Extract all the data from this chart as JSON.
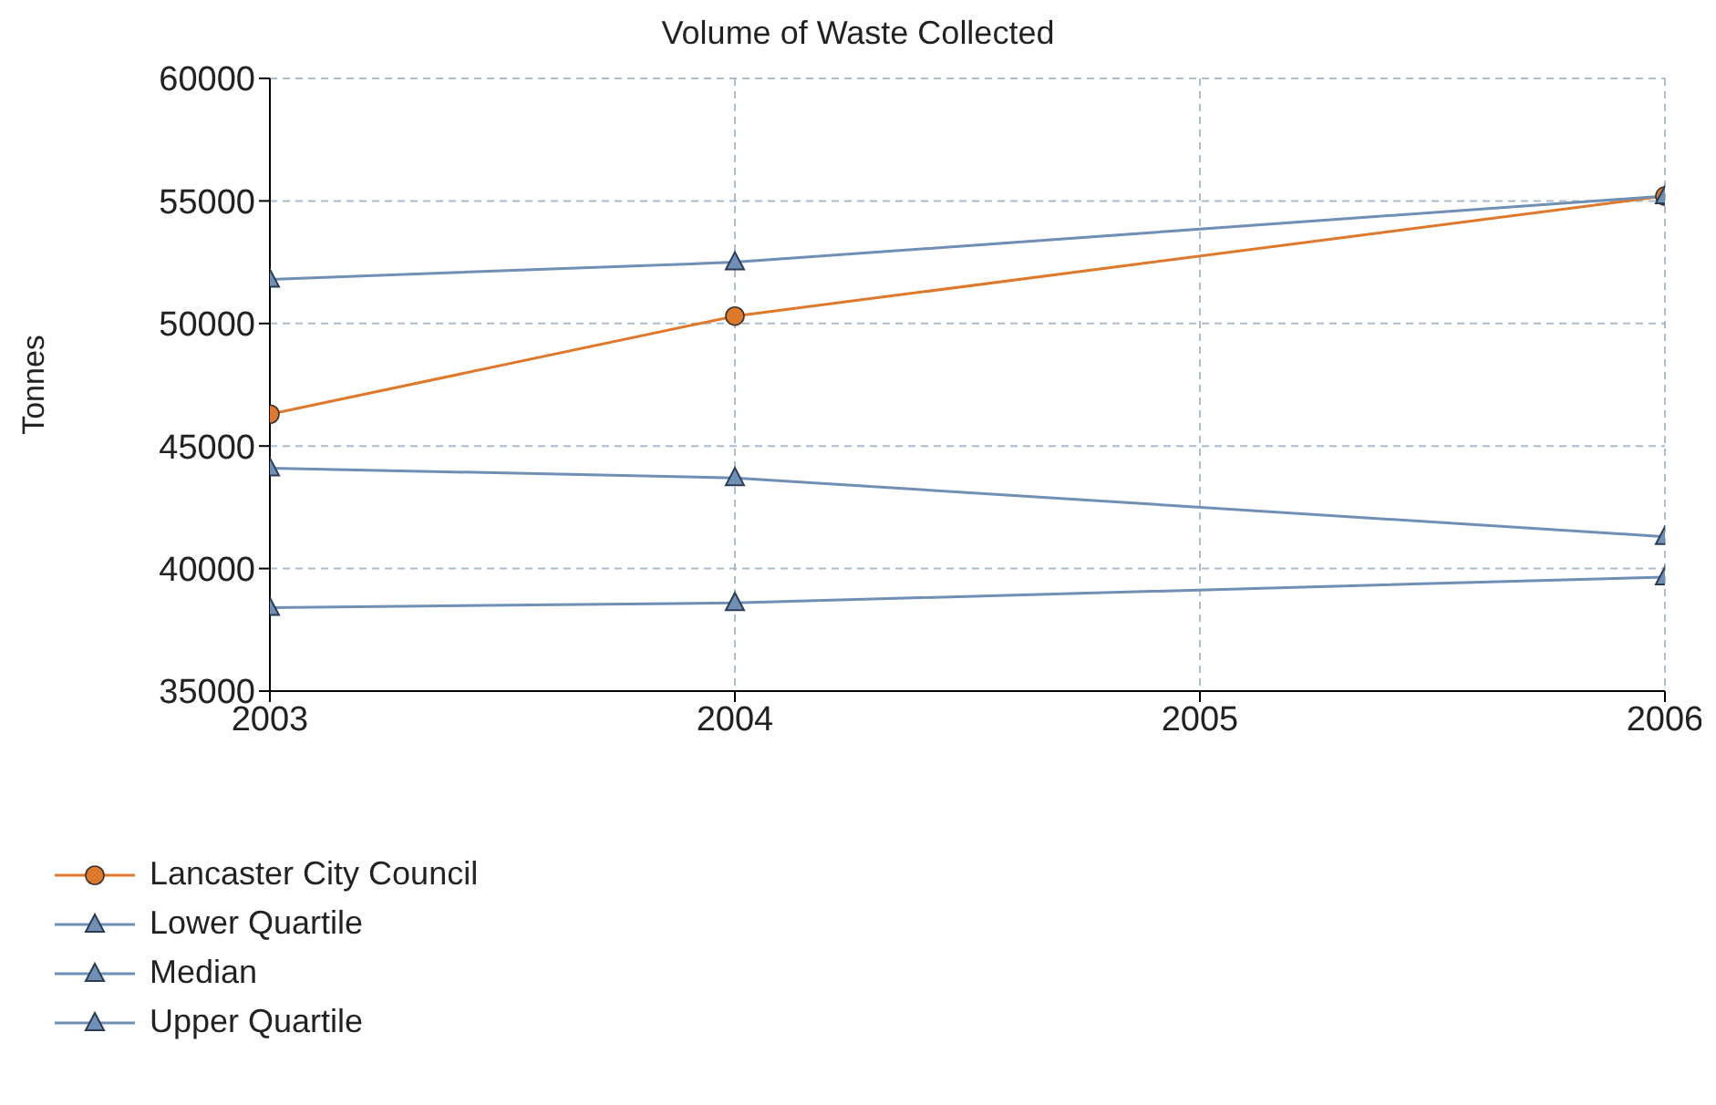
{
  "chart_data": {
    "type": "line",
    "title": "Volume of Waste Collected",
    "ylabel": "Tonnes",
    "x": [
      2003,
      2004,
      2006
    ],
    "series": [
      {
        "name": "Lancaster City Council",
        "color": "#e0782a",
        "marker": "circle",
        "values": [
          46300,
          50300,
          55200
        ]
      },
      {
        "name": "Lower Quartile",
        "color": "#6f8fb5",
        "marker": "triangle",
        "values": [
          38400,
          38600,
          39650
        ]
      },
      {
        "name": "Median",
        "color": "#6f8fb5",
        "marker": "triangle",
        "values": [
          44100,
          43700,
          41300
        ]
      },
      {
        "name": "Upper Quartile",
        "color": "#6f8fb5",
        "marker": "triangle",
        "values": [
          51800,
          52500,
          55200
        ]
      }
    ],
    "xlim": [
      2003,
      2006
    ],
    "xticks": [
      2003,
      2004,
      2005,
      2006
    ],
    "ylim": [
      35000,
      60000
    ],
    "yticks": [
      35000,
      40000,
      45000,
      50000,
      55000,
      60000
    ],
    "grid": true,
    "legend": "bottom left"
  }
}
